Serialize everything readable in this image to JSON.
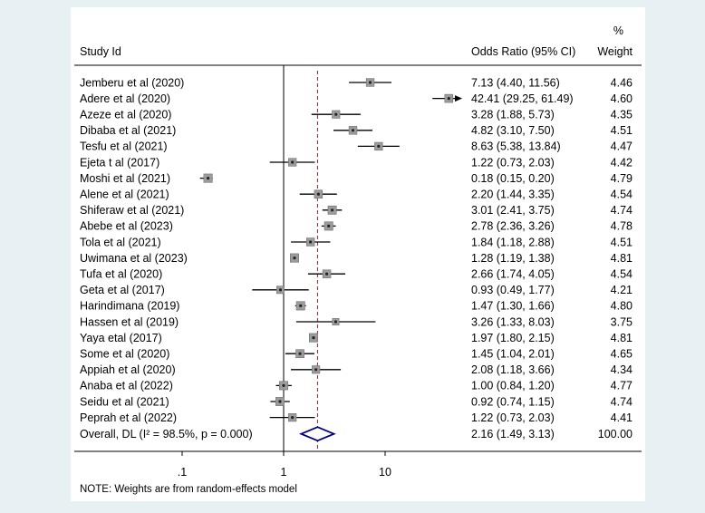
{
  "page": {
    "background": "#e7f0f2",
    "panel_background": "#ffffff"
  },
  "chart_data": {
    "type": "forest",
    "scale": "log10",
    "col_headers": {
      "study": "Study Id",
      "percent": "%",
      "odds_ratio": "Odds Ratio (95% CI)",
      "weight": "Weight"
    },
    "x_axis": {
      "ticks": [
        0.1,
        1,
        10
      ],
      "tick_labels": [
        ".1",
        "1",
        "10"
      ],
      "null_line": 1
    },
    "overall_line_value": 2.16,
    "studies": [
      {
        "label": "Jemberu et al (2020)",
        "or": 7.13,
        "lo": 4.4,
        "hi": 11.56,
        "or_text": "7.13 (4.40, 11.56)",
        "weight": 4.46,
        "weight_text": "4.46"
      },
      {
        "label": "Adere et al (2020)",
        "or": 42.41,
        "lo": 29.25,
        "hi": 61.49,
        "or_text": "42.41 (29.25, 61.49)",
        "weight": 4.6,
        "weight_text": "4.60"
      },
      {
        "label": "Azeze et al (2020)",
        "or": 3.28,
        "lo": 1.88,
        "hi": 5.73,
        "or_text": "3.28 (1.88, 5.73)",
        "weight": 4.35,
        "weight_text": "4.35"
      },
      {
        "label": "Dibaba et al (2021)",
        "or": 4.82,
        "lo": 3.1,
        "hi": 7.5,
        "or_text": "4.82 (3.10, 7.50)",
        "weight": 4.51,
        "weight_text": "4.51"
      },
      {
        "label": "Tesfu et al (2021)",
        "or": 8.63,
        "lo": 5.38,
        "hi": 13.84,
        "or_text": "8.63 (5.38, 13.84)",
        "weight": 4.47,
        "weight_text": "4.47"
      },
      {
        "label": "Ejeta t al (2017)",
        "or": 1.22,
        "lo": 0.73,
        "hi": 2.03,
        "or_text": "1.22 (0.73, 2.03)",
        "weight": 4.42,
        "weight_text": "4.42"
      },
      {
        "label": "Moshi et al (2021)",
        "or": 0.18,
        "lo": 0.15,
        "hi": 0.2,
        "or_text": "0.18 (0.15, 0.20)",
        "weight": 4.79,
        "weight_text": "4.79"
      },
      {
        "label": "Alene et al (2021)",
        "or": 2.2,
        "lo": 1.44,
        "hi": 3.35,
        "or_text": "2.20 (1.44, 3.35)",
        "weight": 4.54,
        "weight_text": "4.54"
      },
      {
        "label": "Shiferaw et al (2021)",
        "or": 3.01,
        "lo": 2.41,
        "hi": 3.75,
        "or_text": "3.01 (2.41, 3.75)",
        "weight": 4.74,
        "weight_text": "4.74"
      },
      {
        "label": "Abebe et al (2023)",
        "or": 2.78,
        "lo": 2.36,
        "hi": 3.26,
        "or_text": "2.78 (2.36, 3.26)",
        "weight": 4.78,
        "weight_text": "4.78"
      },
      {
        "label": "Tola et al (2021)",
        "or": 1.84,
        "lo": 1.18,
        "hi": 2.88,
        "or_text": "1.84 (1.18, 2.88)",
        "weight": 4.51,
        "weight_text": "4.51"
      },
      {
        "label": "Uwimana et al (2023)",
        "or": 1.28,
        "lo": 1.19,
        "hi": 1.38,
        "or_text": "1.28 (1.19, 1.38)",
        "weight": 4.81,
        "weight_text": "4.81"
      },
      {
        "label": "Tufa et al (2020)",
        "or": 2.66,
        "lo": 1.74,
        "hi": 4.05,
        "or_text": "2.66 (1.74, 4.05)",
        "weight": 4.54,
        "weight_text": "4.54"
      },
      {
        "label": "Geta et al (2017)",
        "or": 0.93,
        "lo": 0.49,
        "hi": 1.77,
        "or_text": "0.93 (0.49, 1.77)",
        "weight": 4.21,
        "weight_text": "4.21"
      },
      {
        "label": "Harindimana (2019)",
        "or": 1.47,
        "lo": 1.3,
        "hi": 1.66,
        "or_text": "1.47 (1.30, 1.66)",
        "weight": 4.8,
        "weight_text": "4.80"
      },
      {
        "label": "Hassen et al (2019)",
        "or": 3.26,
        "lo": 1.33,
        "hi": 8.03,
        "or_text": "3.26 (1.33, 8.03)",
        "weight": 3.75,
        "weight_text": "3.75"
      },
      {
        "label": "Yaya etal (2017)",
        "or": 1.97,
        "lo": 1.8,
        "hi": 2.15,
        "or_text": "1.97 (1.80, 2.15)",
        "weight": 4.81,
        "weight_text": "4.81"
      },
      {
        "label": "Some et al (2020)",
        "or": 1.45,
        "lo": 1.04,
        "hi": 2.01,
        "or_text": "1.45 (1.04, 2.01)",
        "weight": 4.65,
        "weight_text": "4.65"
      },
      {
        "label": "Appiah et al (2020)",
        "or": 2.08,
        "lo": 1.18,
        "hi": 3.66,
        "or_text": "2.08 (1.18, 3.66)",
        "weight": 4.34,
        "weight_text": "4.34"
      },
      {
        "label": "Anaba et al (2022)",
        "or": 1.0,
        "lo": 0.84,
        "hi": 1.2,
        "or_text": "1.00 (0.84, 1.20)",
        "weight": 4.77,
        "weight_text": "4.77"
      },
      {
        "label": "Seidu et al (2021)",
        "or": 0.92,
        "lo": 0.74,
        "hi": 1.15,
        "or_text": "0.92 (0.74, 1.15)",
        "weight": 4.74,
        "weight_text": "4.74"
      },
      {
        "label": "Peprah et al (2022)",
        "or": 1.22,
        "lo": 0.73,
        "hi": 2.03,
        "or_text": "1.22 (0.73, 2.03)",
        "weight": 4.41,
        "weight_text": "4.41"
      }
    ],
    "overall": {
      "label": "Overall, DL (I² = 98.5%, p = 0.000)",
      "or": 2.16,
      "lo": 1.49,
      "hi": 3.13,
      "or_text": "2.16 (1.49, 3.13)",
      "weight_text": "100.00"
    },
    "note": "NOTE: Weights are from random-effects model",
    "colors": {
      "marker": "#9c9c9c",
      "marker_edge": "#6f6f6f",
      "marker_dot": "#222222",
      "ci_line": "#000000",
      "diamond": "#000080",
      "dashed_line": "#8b3a3a",
      "axis": "#000000"
    }
  }
}
